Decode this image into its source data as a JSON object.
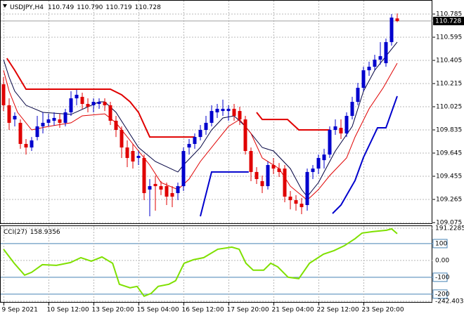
{
  "chart_data": [
    {
      "type": "candlestick",
      "title": "USDJPY,H4",
      "ohlc_text": [
        "110.749",
        "110.790",
        "110.719",
        "110.728"
      ],
      "up_color": "#0000cd",
      "down_color": "#e00000",
      "xlim": [
        -0.625,
        76.25
      ],
      "ylim": [
        109.075,
        110.85
      ],
      "yticks": [
        109.075,
        109.265,
        109.455,
        109.645,
        109.835,
        110.025,
        110.215,
        110.405,
        110.595,
        110.785
      ],
      "grid": true,
      "current_price": 110.728,
      "ohlc": [
        [
          110.209,
          110.267,
          109.99,
          110.037
        ],
        [
          110.037,
          110.094,
          109.835,
          109.893
        ],
        [
          109.921,
          109.979,
          109.864,
          109.95
        ],
        [
          109.893,
          109.921,
          109.68,
          109.72
        ],
        [
          109.72,
          109.76,
          109.633,
          109.691
        ],
        [
          109.691,
          109.777,
          109.662,
          109.749
        ],
        [
          109.777,
          109.95,
          109.749,
          109.864
        ],
        [
          109.864,
          109.979,
          109.806,
          109.893
        ],
        [
          109.893,
          109.967,
          109.864,
          109.921
        ],
        [
          109.91,
          109.979,
          109.87,
          109.933
        ],
        [
          109.921,
          109.967,
          109.852,
          109.893
        ],
        [
          109.893,
          110.008,
          109.864,
          109.979
        ],
        [
          109.979,
          110.152,
          109.95,
          110.094
        ],
        [
          110.094,
          110.163,
          110.037,
          110.123
        ],
        [
          110.106,
          110.14,
          110.008,
          110.048
        ],
        [
          110.048,
          110.094,
          109.979,
          110.025
        ],
        [
          110.037,
          110.094,
          109.979,
          110.065
        ],
        [
          110.048,
          110.094,
          110.008,
          110.065
        ],
        [
          110.065,
          110.094,
          109.99,
          110.037
        ],
        [
          110.037,
          110.065,
          109.875,
          109.91
        ],
        [
          109.91,
          109.95,
          109.777,
          109.835
        ],
        [
          109.835,
          109.864,
          109.605,
          109.691
        ],
        [
          109.691,
          109.749,
          109.53,
          109.605
        ],
        [
          109.662,
          109.72,
          109.518,
          109.576
        ],
        [
          109.605,
          109.662,
          109.547,
          109.622
        ],
        [
          109.605,
          109.633,
          109.259,
          109.317
        ],
        [
          109.346,
          109.432,
          109.127,
          109.374
        ],
        [
          109.392,
          109.461,
          109.173,
          109.374
        ],
        [
          109.374,
          109.415,
          109.3,
          109.346
        ],
        [
          109.374,
          109.403,
          109.219,
          109.288
        ],
        [
          109.317,
          109.374,
          109.202,
          109.288
        ],
        [
          109.317,
          109.403,
          109.259,
          109.374
        ],
        [
          109.374,
          109.691,
          109.334,
          109.662
        ],
        [
          109.691,
          109.76,
          109.633,
          109.72
        ],
        [
          109.72,
          109.806,
          109.68,
          109.777
        ],
        [
          109.777,
          109.875,
          109.749,
          109.835
        ],
        [
          109.835,
          109.95,
          109.795,
          109.893
        ],
        [
          109.893,
          110.037,
          109.864,
          109.99
        ],
        [
          109.979,
          110.048,
          109.933,
          110.008
        ],
        [
          109.99,
          110.083,
          109.95,
          110.008
        ],
        [
          109.99,
          110.037,
          109.91,
          110.008
        ],
        [
          110.008,
          110.048,
          109.91,
          109.95
        ],
        [
          109.99,
          110.025,
          109.875,
          109.921
        ],
        [
          109.921,
          109.95,
          109.633,
          109.662
        ],
        [
          109.662,
          109.691,
          109.415,
          109.49
        ],
        [
          109.49,
          109.53,
          109.392,
          109.432
        ],
        [
          109.415,
          109.461,
          109.317,
          109.374
        ],
        [
          109.374,
          109.576,
          109.346,
          109.547
        ],
        [
          109.547,
          109.605,
          109.472,
          109.518
        ],
        [
          109.518,
          109.564,
          109.449,
          109.49
        ],
        [
          109.518,
          109.547,
          109.242,
          109.288
        ],
        [
          109.288,
          109.334,
          109.184,
          109.259
        ],
        [
          109.259,
          109.3,
          109.173,
          109.23
        ],
        [
          109.23,
          109.277,
          109.144,
          109.202
        ],
        [
          109.219,
          109.518,
          109.173,
          109.49
        ],
        [
          109.49,
          109.547,
          109.432,
          109.518
        ],
        [
          109.518,
          109.633,
          109.472,
          109.605
        ],
        [
          109.587,
          109.68,
          109.518,
          109.633
        ],
        [
          109.633,
          109.864,
          109.605,
          109.835
        ],
        [
          109.835,
          109.921,
          109.795,
          109.864
        ],
        [
          109.852,
          109.921,
          109.76,
          109.806
        ],
        [
          109.806,
          109.979,
          109.777,
          109.95
        ],
        [
          109.95,
          110.106,
          109.921,
          110.065
        ],
        [
          110.065,
          110.221,
          110.037,
          110.18
        ],
        [
          110.18,
          110.353,
          110.152,
          110.324
        ],
        [
          110.324,
          110.394,
          110.278,
          110.353
        ],
        [
          110.353,
          110.451,
          110.324,
          110.411
        ],
        [
          110.411,
          110.555,
          110.371,
          110.44
        ],
        [
          110.382,
          110.584,
          110.353,
          110.555
        ],
        [
          110.555,
          110.785,
          110.526,
          110.756
        ],
        [
          110.749,
          110.79,
          110.719,
          110.728
        ]
      ],
      "overlays": [
        {
          "color": "#000040",
          "width": 1,
          "x": [
            0,
            1,
            2,
            4,
            7,
            12,
            17,
            18,
            20,
            22,
            24,
            27,
            31,
            32,
            35,
            37,
            39,
            41,
            43,
            46,
            48,
            51,
            53,
            54,
            56,
            57,
            59,
            62,
            64,
            66,
            68,
            70
          ],
          "values": [
            110.411,
            110.267,
            110.152,
            110.037,
            109.979,
            109.962,
            110.065,
            110.065,
            109.979,
            109.835,
            109.691,
            109.576,
            109.49,
            109.547,
            109.691,
            109.835,
            109.933,
            109.95,
            109.864,
            109.691,
            109.662,
            109.518,
            109.346,
            109.288,
            109.403,
            109.49,
            109.662,
            109.864,
            110.152,
            110.324,
            110.44,
            110.555
          ]
        },
        {
          "color": "#e00000",
          "width": 1,
          "x": [
            0,
            1,
            2.5,
            5,
            8,
            12,
            14,
            18,
            20,
            23,
            26,
            28,
            31,
            33,
            35,
            38,
            40,
            42,
            44,
            46,
            49,
            51,
            54,
            56,
            58,
            61,
            62.5,
            65,
            67.5,
            70
          ],
          "values": [
            110.324,
            110.152,
            109.979,
            109.835,
            109.864,
            109.893,
            109.95,
            109.967,
            109.893,
            109.72,
            109.547,
            109.403,
            109.346,
            109.432,
            109.576,
            109.749,
            109.864,
            109.921,
            109.806,
            109.605,
            109.518,
            109.374,
            109.259,
            109.346,
            109.461,
            109.605,
            109.777,
            110.008,
            110.18,
            110.382
          ]
        },
        {
          "color": "#e00000",
          "width": 2,
          "x": [
            0.6,
            2,
            4,
            19,
            21,
            22.5,
            24,
            26,
            34,
            40,
            45,
            46,
            50.5,
            52.5,
            58
          ],
          "values": [
            110.422,
            110.324,
            110.169,
            110.169,
            110.123,
            110.065,
            109.979,
            109.777,
            109.777,
            null,
            109.979,
            109.921,
            109.921,
            109.835,
            109.835
          ]
        },
        {
          "color": "#0000cd",
          "width": 2,
          "x": [
            35,
            37,
            43.6,
            50,
            58.5,
            60,
            62.5,
            64,
            66.5,
            68,
            70
          ],
          "values": [
            109.127,
            109.49,
            109.49,
            null,
            109.15,
            109.219,
            109.42,
            109.61,
            109.852,
            109.852,
            110.112
          ]
        }
      ]
    },
    {
      "type": "line",
      "title": "CCI(27)",
      "last_value": 158.9356,
      "color": "#7fe000",
      "xlim": [
        -0.625,
        76.25
      ],
      "ylim": [
        -242.4031,
        191.2285
      ],
      "yticks": [
        {
          "value": 191.2285,
          "label": "191.2285"
        },
        100,
        {
          "value": 0,
          "label": "0.00"
        },
        -100,
        -200,
        {
          "value": -242.4031,
          "label": "-242.4031"
        }
      ],
      "levels": [
        100,
        -100,
        -200
      ],
      "level_color": "#4682b4",
      "xticks": [
        {
          "value": 0,
          "label": "9 Sep 2021"
        },
        {
          "value": 8,
          "label": "10 Sep 12:00"
        },
        {
          "value": 16,
          "label": "13 Sep 20:00"
        },
        {
          "value": 24,
          "label": "15 Sep 04:00"
        },
        {
          "value": 32,
          "label": "16 Sep 12:00"
        },
        {
          "value": 40,
          "label": "17 Sep 20:00"
        },
        {
          "value": 48,
          "label": "21 Sep 04:00"
        },
        {
          "value": 56,
          "label": "22 Sep 12:00"
        },
        {
          "value": 64,
          "label": "23 Sep 20:00"
        }
      ],
      "x": [
        0,
        1.9,
        3.75,
        5,
        6.9,
        9.4,
        11.9,
        13.75,
        15.6,
        17.5,
        19.4,
        20.6,
        22.5,
        23.75,
        25,
        26.25,
        27.5,
        29.4,
        30.6,
        32.1,
        33.75,
        35.6,
        38.1,
        40.6,
        41.9,
        43.1,
        44.4,
        46.25,
        47.5,
        48.75,
        50.6,
        52.5,
        54.4,
        56.9,
        58.75,
        60.6,
        62.5,
        63.75,
        65.6,
        68.1,
        69,
        70
      ],
      "values": [
        66.7,
        -16.7,
        -87.5,
        -70.8,
        -25,
        -29.2,
        -12.5,
        16.7,
        -4.2,
        20.8,
        -16.7,
        -141.7,
        -162.5,
        -154.2,
        -212.5,
        -195.8,
        -154.2,
        -141.7,
        -120.8,
        -16.7,
        4.2,
        16.7,
        66.7,
        79.2,
        66.7,
        -16.7,
        -58.3,
        -58.3,
        -16.7,
        -37.5,
        -100,
        -108.3,
        -16.7,
        37.5,
        58.3,
        87.5,
        129.2,
        162.5,
        170.8,
        179.2,
        187.5,
        158.9356
      ]
    }
  ]
}
